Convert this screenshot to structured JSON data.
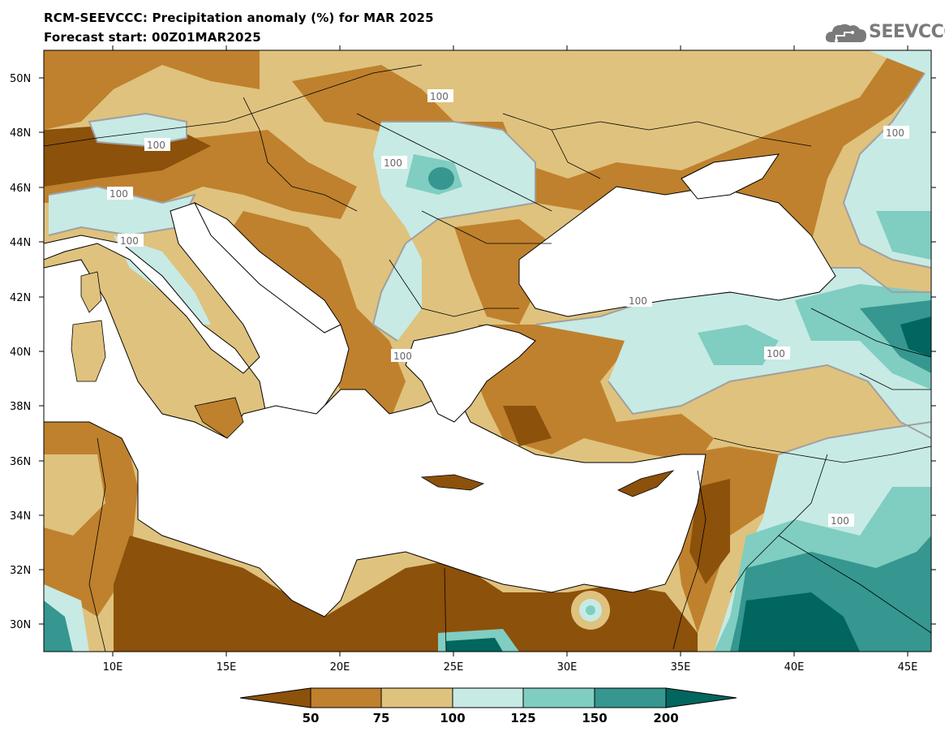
{
  "header": {
    "title": "RCM-SEEVCCC: Precipitation anomaly (%) for MAR 2025",
    "subtitle": "Forecast start: 00Z01MAR2025"
  },
  "logo": {
    "text": "SEEVCCC",
    "icon": "cloud-logo-icon"
  },
  "axes": {
    "lat_labels": [
      "50N",
      "48N",
      "46N",
      "44N",
      "42N",
      "40N",
      "38N",
      "36N",
      "34N",
      "32N",
      "30N"
    ],
    "lon_labels": [
      "10E",
      "15E",
      "20E",
      "25E",
      "30E",
      "35E",
      "40E",
      "45E"
    ]
  },
  "contour_labels": [
    "100",
    "100",
    "100",
    "100",
    "100",
    "100",
    "100",
    "100",
    "100",
    "100"
  ],
  "colorbar": {
    "labels": [
      "50",
      "75",
      "100",
      "125",
      "150",
      "200"
    ],
    "colors": [
      "#8c510a",
      "#bf812d",
      "#dfc27d",
      "#c7eae5",
      "#80cdc1",
      "#35978f",
      "#01665e"
    ]
  },
  "colors": {
    "very_dry": "#8c510a",
    "dry": "#bf812d",
    "slightly_dry": "#dfc27d",
    "slightly_wet": "#c7eae5",
    "wet": "#80cdc1",
    "very_wet": "#35978f",
    "extreme_wet": "#01665e",
    "sea": "#ffffff",
    "contour": "#a0a0a0",
    "border": "#000000"
  }
}
